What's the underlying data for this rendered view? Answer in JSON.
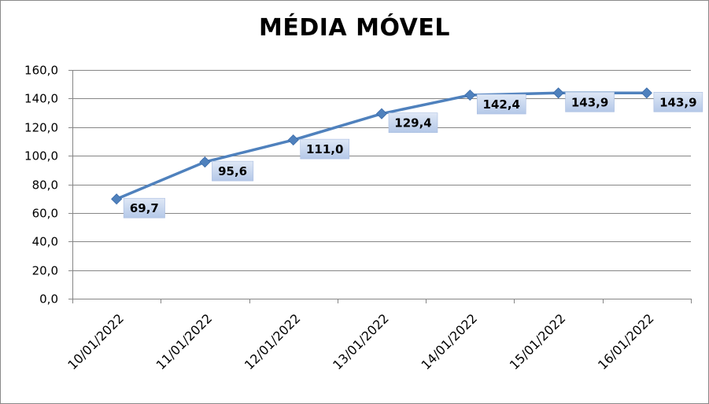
{
  "chart_data": {
    "type": "line",
    "title": "MÉDIA MÓVEL",
    "xlabel": "",
    "ylabel": "",
    "categories": [
      "10/01/2022",
      "11/01/2022",
      "12/01/2022",
      "13/01/2022",
      "14/01/2022",
      "15/01/2022",
      "16/01/2022"
    ],
    "series": [
      {
        "values": [
          69.7,
          95.6,
          111.0,
          129.4,
          142.4,
          143.9,
          143.9
        ],
        "labels": [
          "69,7",
          "95,6",
          "111,0",
          "129,4",
          "142,4",
          "143,9",
          "143,9"
        ]
      }
    ],
    "ylim": [
      0,
      160
    ],
    "yticks": [
      0,
      20,
      40,
      60,
      80,
      100,
      120,
      140,
      160
    ],
    "ytick_labels": [
      "0,0",
      "20,0",
      "40,0",
      "60,0",
      "80,0",
      "100,0",
      "120,0",
      "140,0",
      "160,0"
    ],
    "grid": true,
    "legend": "none",
    "colors": {
      "line": "#4f81bd",
      "marker": "#4f81bd",
      "label_bg": "#c6d5ee",
      "grid": "#868686",
      "axis": "#868686",
      "border": "#8a8a8a"
    }
  }
}
